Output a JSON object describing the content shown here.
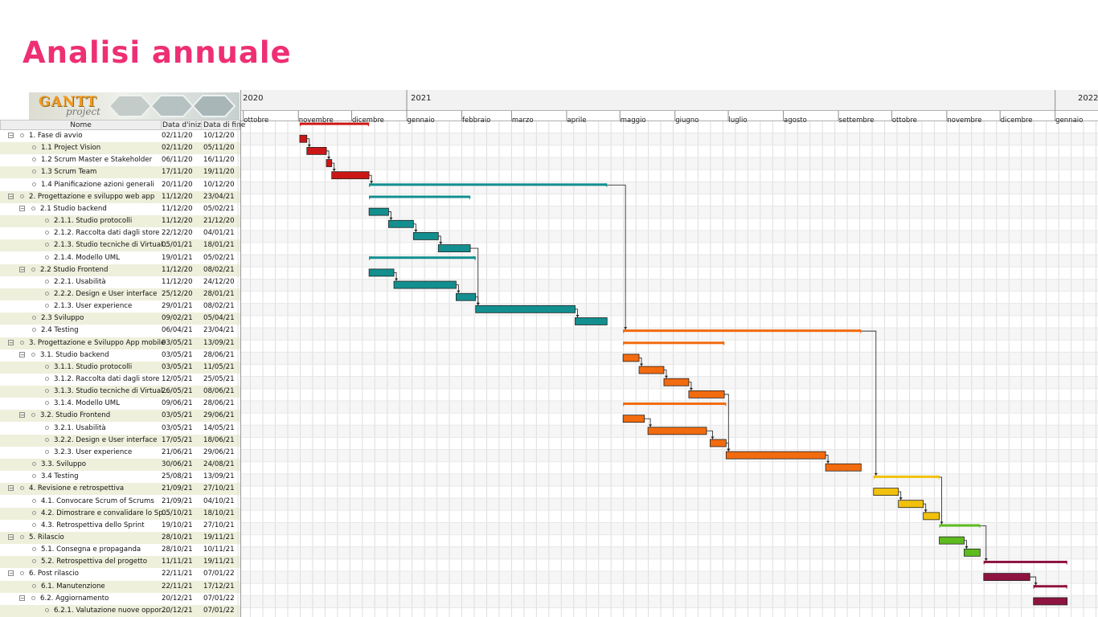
{
  "page": {
    "title": "Analisi annuale"
  },
  "app": {
    "logo_text": "GANTT",
    "logo_sub": "project"
  },
  "columns": {
    "name": "Nome",
    "start": "Data d'inizio",
    "end": "Data di fine"
  },
  "timeline": {
    "years": [
      "2020",
      "2021",
      "2022"
    ],
    "months": [
      "ottobre",
      "novembre",
      "dicembre",
      "gennaio",
      "febbraio",
      "marzo",
      "aprile",
      "maggio",
      "giugno",
      "luglio",
      "agosto",
      "settembre",
      "ottobre",
      "novembre",
      "dicembre",
      "gennaio"
    ]
  },
  "colors": {
    "phase1": "#cc1616",
    "phase2": "#138f8f",
    "phase3": "#f26b0f",
    "phase4": "#f2c10d",
    "phase5": "#5dbb1f",
    "phase6": "#8e1340",
    "title": "#ee2f73"
  },
  "tasks": [
    {
      "name": "1. Fase di avvio",
      "start": "02/11/20",
      "end": "10/12/20",
      "level": 0,
      "toggle": "−",
      "summary": true,
      "color": "#cc1616"
    },
    {
      "name": "1.1 Project Vision",
      "start": "02/11/20",
      "end": "05/11/20",
      "level": 1,
      "color": "#cc1616"
    },
    {
      "name": "1.2 Scrum Master e  Stakeholder",
      "start": "06/11/20",
      "end": "16/11/20",
      "level": 1,
      "color": "#cc1616"
    },
    {
      "name": "1.3 Scrum Team",
      "start": "17/11/20",
      "end": "19/11/20",
      "level": 1,
      "color": "#cc1616"
    },
    {
      "name": "1.4 Pianificazione azioni generali",
      "start": "20/11/20",
      "end": "10/12/20",
      "level": 1,
      "color": "#cc1616"
    },
    {
      "name": "2. Progettazione e sviluppo web app",
      "start": "11/12/20",
      "end": "23/04/21",
      "level": 0,
      "toggle": "−",
      "summary": true,
      "color": "#138f8f"
    },
    {
      "name": "2.1 Studio backend",
      "start": "11/12/20",
      "end": "05/02/21",
      "level": 1,
      "toggle": "−",
      "summary": true,
      "color": "#138f8f"
    },
    {
      "name": "2.1.1. Studio protocolli",
      "start": "11/12/20",
      "end": "21/12/20",
      "level": 2,
      "color": "#138f8f"
    },
    {
      "name": "2.1.2. Raccolta dati dagli store",
      "start": "22/12/20",
      "end": "04/01/21",
      "level": 2,
      "color": "#138f8f"
    },
    {
      "name": "2.1.3. Studio tecniche di Virtual...",
      "start": "05/01/21",
      "end": "18/01/21",
      "level": 2,
      "color": "#138f8f"
    },
    {
      "name": "2.1.4. Modello UML",
      "start": "19/01/21",
      "end": "05/02/21",
      "level": 2,
      "color": "#138f8f"
    },
    {
      "name": "2.2 Studio Frontend",
      "start": "11/12/20",
      "end": "08/02/21",
      "level": 1,
      "toggle": "−",
      "summary": true,
      "color": "#138f8f"
    },
    {
      "name": "2.2.1. Usabilità",
      "start": "11/12/20",
      "end": "24/12/20",
      "level": 2,
      "color": "#138f8f"
    },
    {
      "name": "2.2.2. Design e User interface",
      "start": "25/12/20",
      "end": "28/01/21",
      "level": 2,
      "color": "#138f8f"
    },
    {
      "name": "2.1.3. User experience",
      "start": "29/01/21",
      "end": "08/02/21",
      "level": 2,
      "color": "#138f8f"
    },
    {
      "name": "2.3 Sviluppo",
      "start": "09/02/21",
      "end": "05/04/21",
      "level": 1,
      "color": "#138f8f"
    },
    {
      "name": "2.4 Testing",
      "start": "06/04/21",
      "end": "23/04/21",
      "level": 1,
      "color": "#138f8f"
    },
    {
      "name": "3. Progettazione e Sviluppo App mobile",
      "start": "03/05/21",
      "end": "13/09/21",
      "level": 0,
      "toggle": "−",
      "summary": true,
      "color": "#f26b0f"
    },
    {
      "name": "3.1. Studio backend",
      "start": "03/05/21",
      "end": "28/06/21",
      "level": 1,
      "toggle": "−",
      "summary": true,
      "color": "#f26b0f"
    },
    {
      "name": "3.1.1. Studio protocolli",
      "start": "03/05/21",
      "end": "11/05/21",
      "level": 2,
      "color": "#f26b0f"
    },
    {
      "name": "3.1.2. Raccolta dati dagli store",
      "start": "12/05/21",
      "end": "25/05/21",
      "level": 2,
      "color": "#f26b0f"
    },
    {
      "name": "3.1.3. Studio tecniche di Virtual...",
      "start": "26/05/21",
      "end": "08/06/21",
      "level": 2,
      "color": "#f26b0f"
    },
    {
      "name": "3.1.4. Modello UML",
      "start": "09/06/21",
      "end": "28/06/21",
      "level": 2,
      "color": "#f26b0f"
    },
    {
      "name": "3.2. Studio Frontend",
      "start": "03/05/21",
      "end": "29/06/21",
      "level": 1,
      "toggle": "−",
      "summary": true,
      "color": "#f26b0f"
    },
    {
      "name": "3.2.1. Usabilità",
      "start": "03/05/21",
      "end": "14/05/21",
      "level": 2,
      "color": "#f26b0f"
    },
    {
      "name": "3.2.2. Design e User interface",
      "start": "17/05/21",
      "end": "18/06/21",
      "level": 2,
      "color": "#f26b0f"
    },
    {
      "name": "3.2.3. User experience",
      "start": "21/06/21",
      "end": "29/06/21",
      "level": 2,
      "color": "#f26b0f"
    },
    {
      "name": "3.3. Sviluppo",
      "start": "30/06/21",
      "end": "24/08/21",
      "level": 1,
      "color": "#f26b0f"
    },
    {
      "name": "3.4 Testing",
      "start": "25/08/21",
      "end": "13/09/21",
      "level": 1,
      "color": "#f26b0f"
    },
    {
      "name": "4. Revisione e retrospettiva",
      "start": "21/09/21",
      "end": "27/10/21",
      "level": 0,
      "toggle": "−",
      "summary": true,
      "color": "#f2c10d"
    },
    {
      "name": "4.1. Convocare Scrum of Scrums",
      "start": "21/09/21",
      "end": "04/10/21",
      "level": 1,
      "color": "#f2c10d"
    },
    {
      "name": "4.2. Dimostrare e convalidare lo Sp...",
      "start": "05/10/21",
      "end": "18/10/21",
      "level": 1,
      "color": "#f2c10d"
    },
    {
      "name": "4.3. Retrospettiva dello Sprint",
      "start": "19/10/21",
      "end": "27/10/21",
      "level": 1,
      "color": "#f2c10d"
    },
    {
      "name": "5. Rilascio",
      "start": "28/10/21",
      "end": "19/11/21",
      "level": 0,
      "toggle": "−",
      "summary": true,
      "color": "#5dbb1f"
    },
    {
      "name": "5.1. Consegna e propaganda",
      "start": "28/10/21",
      "end": "10/11/21",
      "level": 1,
      "color": "#5dbb1f"
    },
    {
      "name": "5.2. Retrospettiva del progetto",
      "start": "11/11/21",
      "end": "19/11/21",
      "level": 1,
      "color": "#5dbb1f"
    },
    {
      "name": "6. Post rilascio",
      "start": "22/11/21",
      "end": "07/01/22",
      "level": 0,
      "toggle": "−",
      "summary": true,
      "color": "#8e1340"
    },
    {
      "name": "6.1. Manutenzione",
      "start": "22/11/21",
      "end": "17/12/21",
      "level": 1,
      "color": "#8e1340"
    },
    {
      "name": "6.2. Aggiornamento",
      "start": "20/12/21",
      "end": "07/01/22",
      "level": 1,
      "toggle": "−",
      "summary": true,
      "color": "#8e1340"
    },
    {
      "name": "6.2.1. Valutazione nuove oppor...",
      "start": "20/12/21",
      "end": "07/01/22",
      "level": 2,
      "color": "#8e1340"
    }
  ]
}
